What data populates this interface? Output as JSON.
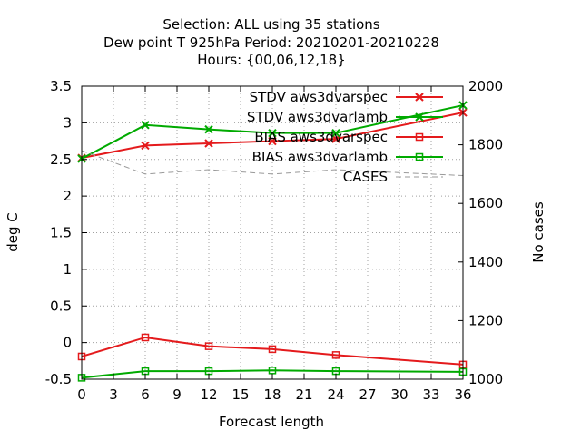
{
  "chart_data": {
    "type": "line",
    "title_lines": [
      "Selection: ALL using    35 stations",
      "Dew point T 925hPa   Period: 20210201-20210228",
      "Hours: {00,06,12,18}"
    ],
    "xlabel": "Forecast length",
    "ylabel": "deg C",
    "y2label": "No cases",
    "xlim": [
      0,
      36
    ],
    "ylim": [
      -0.5,
      3.5
    ],
    "y2lim": [
      1000,
      2000
    ],
    "x_ticks": [
      "0",
      "3",
      "6",
      "9",
      "12",
      "15",
      "18",
      "21",
      "24",
      "27",
      "30",
      "33",
      "36"
    ],
    "y_ticks": [
      "-0.5",
      "0",
      "0.5",
      "1",
      "1.5",
      "2",
      "2.5",
      "3",
      "3.5"
    ],
    "y2_ticks": [
      "1000",
      "1200",
      "1400",
      "1600",
      "1800",
      "2000"
    ],
    "grid": true,
    "legend_position": "top-right",
    "series": [
      {
        "name": "STDV aws3dvarspec",
        "color": "#e41a1c",
        "marker": "x",
        "axis": "y",
        "x": [
          0,
          6,
          12,
          18,
          24,
          36
        ],
        "values": [
          2.52,
          2.69,
          2.72,
          2.75,
          2.78,
          3.14
        ]
      },
      {
        "name": "STDV aws3dvarlamb",
        "color": "#00aa00",
        "marker": "x",
        "axis": "y",
        "x": [
          0,
          6,
          12,
          18,
          24,
          36
        ],
        "values": [
          2.51,
          2.97,
          2.91,
          2.86,
          2.86,
          3.24
        ]
      },
      {
        "name": "BIAS aws3dvarspec",
        "color": "#e41a1c",
        "marker": "square",
        "axis": "y",
        "x": [
          0,
          6,
          12,
          18,
          24,
          36
        ],
        "values": [
          -0.19,
          0.07,
          -0.05,
          -0.09,
          -0.17,
          -0.3
        ]
      },
      {
        "name": "BIAS aws3dvarlamb",
        "color": "#00aa00",
        "marker": "square",
        "axis": "y",
        "x": [
          0,
          6,
          12,
          18,
          24,
          36
        ],
        "values": [
          -0.48,
          -0.39,
          -0.39,
          -0.38,
          -0.39,
          -0.4
        ]
      },
      {
        "name": "CASES",
        "color": "#999999",
        "marker": "none",
        "dashed": true,
        "axis": "y2",
        "x": [
          0,
          6,
          12,
          18,
          24,
          36
        ],
        "values": [
          1780,
          1700,
          1715,
          1700,
          1715,
          1695
        ]
      }
    ]
  }
}
